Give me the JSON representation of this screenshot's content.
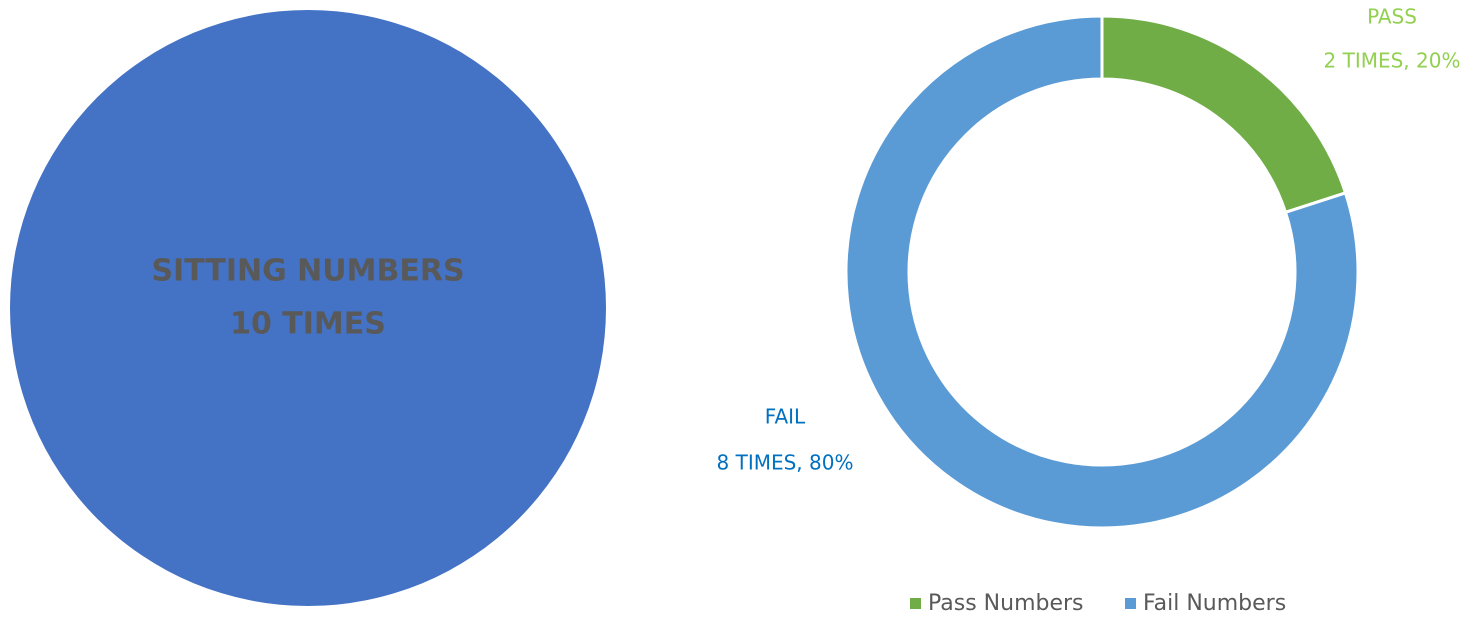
{
  "chart_data": [
    {
      "type": "pie",
      "categories": [
        "SITTING NUMBERS"
      ],
      "values": [
        10
      ],
      "value_labels": [
        "10 TIMES"
      ],
      "colors": [
        "#4472c4"
      ]
    },
    {
      "type": "donut",
      "categories": [
        "PASS",
        "FAIL"
      ],
      "values": [
        2,
        8
      ],
      "value_labels": [
        "2 TIMES, 20%",
        "8 TIMES, 80%"
      ],
      "legend": [
        "Pass Numbers",
        "Fail Numbers"
      ],
      "colors": [
        "#70ad47",
        "#5b9bd5"
      ],
      "label_colors": [
        "#92d050",
        "#0070c0"
      ]
    }
  ]
}
